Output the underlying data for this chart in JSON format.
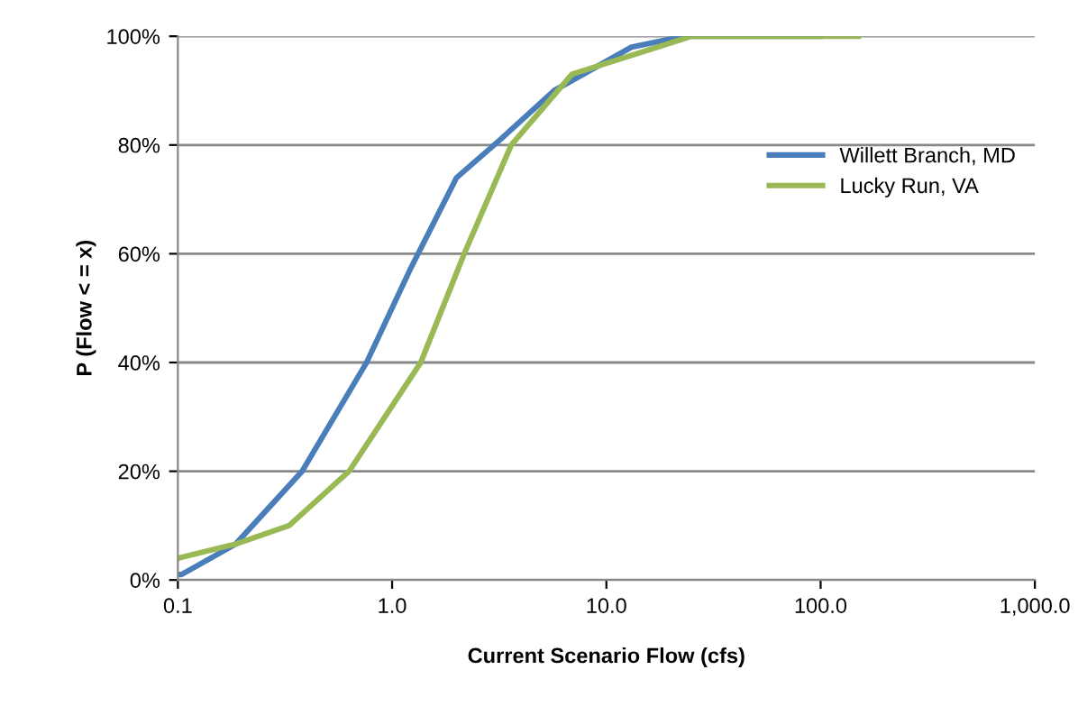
{
  "chart_data": {
    "type": "line",
    "xlabel": "Current Scenario Flow (cfs)",
    "ylabel": "P (Flow < = x)",
    "xlim": [
      0.1,
      1000
    ],
    "xticks": [
      {
        "value": 0.1,
        "label": "0.1"
      },
      {
        "value": 1,
        "label": "1.0"
      },
      {
        "value": 10,
        "label": "10.0"
      },
      {
        "value": 100,
        "label": "100.0"
      },
      {
        "value": 1000,
        "label": "1,000.0"
      }
    ],
    "ylim": [
      0,
      100
    ],
    "yticks": [
      {
        "value": 0,
        "label": "0%"
      },
      {
        "value": 20,
        "label": "20%"
      },
      {
        "value": 40,
        "label": "40%"
      },
      {
        "value": 60,
        "label": "60%"
      },
      {
        "value": 80,
        "label": "80%"
      },
      {
        "value": 100,
        "label": "100%"
      }
    ],
    "log": "x",
    "grid": "y",
    "legend": "right",
    "marker": "none",
    "line_style": "solid",
    "series": [
      {
        "name": "Willett Branch, MD",
        "color": "#4a7ebb",
        "x": [
          0.1,
          0.104,
          0.186,
          0.38,
          0.76,
          1.21,
          2.0,
          3.2,
          5.7,
          13.1,
          23,
          50,
          100
        ],
        "values": [
          1,
          1,
          6.6,
          20,
          40,
          57,
          74,
          81,
          90,
          98,
          100,
          100,
          100
        ]
      },
      {
        "name": "Lucky Run, VA",
        "color": "#98b954",
        "x": [
          0.1,
          0.186,
          0.33,
          0.63,
          1.36,
          2.17,
          3.6,
          6.9,
          25,
          60,
          150
        ],
        "values": [
          4,
          6.6,
          10,
          20,
          40,
          60,
          80,
          93,
          100,
          100,
          100
        ]
      }
    ]
  }
}
